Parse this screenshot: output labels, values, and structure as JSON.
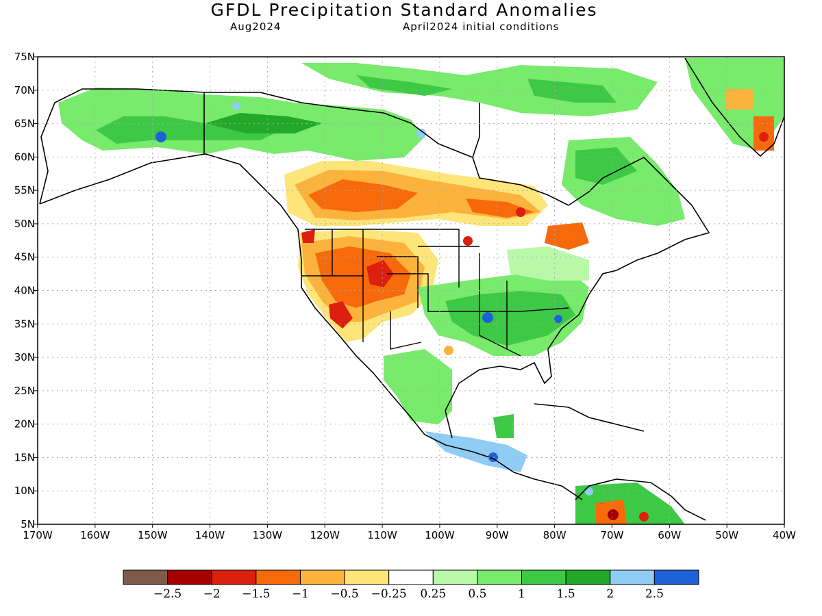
{
  "header": {
    "title": "GFDL Precipitation Standard Anomalies",
    "valid_month": "Aug2024",
    "initial_conditions": "April2024 initial conditions"
  },
  "map": {
    "lat_labels": [
      "75N",
      "70N",
      "65N",
      "60N",
      "55N",
      "50N",
      "45N",
      "40N",
      "35N",
      "30N",
      "25N",
      "20N",
      "15N",
      "10N",
      "5N"
    ],
    "lon_labels": [
      "170W",
      "160W",
      "150W",
      "140W",
      "130W",
      "120W",
      "110W",
      "100W",
      "90W",
      "80W",
      "70W",
      "60W",
      "50W",
      "40W"
    ],
    "lat_range": [
      5,
      75
    ],
    "lon_range": [
      -170,
      -40
    ],
    "grid": "dotted"
  },
  "colorbar": {
    "colors": [
      "#7f5a4a",
      "#a60000",
      "#dd1f0e",
      "#f66a0c",
      "#fbb33d",
      "#fde57a",
      "#ffffff",
      "#b8f8a8",
      "#78ea6c",
      "#3dc845",
      "#23a829",
      "#90cdf4",
      "#1c62d6"
    ],
    "labels": [
      "−2.5",
      "−2",
      "−1.5",
      "−1",
      "−0.5",
      "−0.25",
      "0.25",
      "0.5",
      "1",
      "1.5",
      "2",
      "2.5"
    ]
  }
}
